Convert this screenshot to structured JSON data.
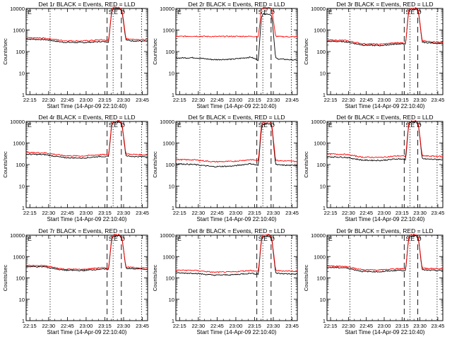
{
  "chart_data": [
    {
      "type": "line",
      "title": "Det 1r BLACK = Events, RED = LLD",
      "xlabel": "Start Time (14-Apr-09 22:10:40)",
      "ylabel": "Counts/sec",
      "ylog": true,
      "ylim": [
        1,
        10000
      ],
      "xlim": [
        22.2,
        23.82
      ],
      "x_ticks": [
        "22:15",
        "22:30",
        "22:45",
        "23:00",
        "23:15",
        "23:30",
        "23:45"
      ],
      "y_ticks": [
        "1",
        "10",
        "100",
        "1000",
        "10000"
      ],
      "x": [
        22.2,
        22.45,
        22.7,
        22.95,
        23.2,
        23.3,
        23.34,
        23.36,
        23.45,
        23.48,
        23.53,
        23.58,
        23.82
      ],
      "series": [
        {
          "name": "BLACK",
          "color": "#000000",
          "values": [
            380,
            360,
            270,
            260,
            290,
            280,
            7000,
            9500,
            9800,
            7000,
            350,
            320,
            300
          ]
        },
        {
          "name": "RED",
          "color": "#ff0000",
          "values": [
            430,
            420,
            320,
            310,
            350,
            330,
            8000,
            11000,
            11000,
            8000,
            420,
            380,
            350
          ]
        }
      ],
      "labels": [
        "E",
        "S",
        "E",
        "D"
      ]
    },
    {
      "type": "line",
      "title": "Det 2r BLACK = Events, RED = LLD",
      "xlabel": "Start Time (14-Apr-09 22:10:40)",
      "ylabel": "Counts/sec",
      "ylog": true,
      "ylim": [
        1,
        10000
      ],
      "xlim": [
        22.2,
        23.82
      ],
      "x_ticks": [
        "22:15",
        "22:30",
        "22:45",
        "23:00",
        "23:15",
        "23:30",
        "23:45"
      ],
      "y_ticks": [
        "1",
        "10",
        "100",
        "1000",
        "10000"
      ],
      "x": [
        22.2,
        22.45,
        22.7,
        22.95,
        23.2,
        23.3,
        23.34,
        23.36,
        23.45,
        23.48,
        23.53,
        23.58,
        23.82
      ],
      "series": [
        {
          "name": "BLACK",
          "color": "#000000",
          "values": [
            50,
            52,
            42,
            44,
            55,
            40,
            4000,
            5500,
            5500,
            4500,
            50,
            45,
            40
          ]
        },
        {
          "name": "RED",
          "color": "#ff0000",
          "values": [
            500,
            520,
            500,
            510,
            510,
            500,
            9000,
            11000,
            11000,
            9000,
            520,
            500,
            480
          ]
        }
      ],
      "labels": [
        "E",
        "S",
        "E",
        "D"
      ]
    },
    {
      "type": "line",
      "title": "Det 3r BLACK = Events, RED = LLD",
      "xlabel": "Start Time (14-Apr-09 22:10:40)",
      "ylabel": "Counts/sec",
      "ylog": true,
      "ylim": [
        1,
        10000
      ],
      "xlim": [
        22.2,
        23.82
      ],
      "x_ticks": [
        "22:15",
        "22:30",
        "22:45",
        "23:00",
        "23:15",
        "23:30",
        "23:45"
      ],
      "y_ticks": [
        "1",
        "10",
        "100",
        "1000",
        "10000"
      ],
      "x": [
        22.2,
        22.45,
        22.7,
        22.95,
        23.2,
        23.3,
        23.34,
        23.36,
        23.45,
        23.48,
        23.53,
        23.58,
        23.82
      ],
      "series": [
        {
          "name": "BLACK",
          "color": "#000000",
          "values": [
            300,
            290,
            200,
            190,
            230,
            220,
            6500,
            9000,
            9500,
            6500,
            280,
            260,
            240
          ]
        },
        {
          "name": "RED",
          "color": "#ff0000",
          "values": [
            340,
            330,
            230,
            220,
            260,
            250,
            7500,
            10500,
            10500,
            7500,
            320,
            300,
            270
          ]
        }
      ],
      "labels": [
        "E",
        "S",
        "E",
        "D"
      ]
    },
    {
      "type": "line",
      "title": "Det 4r BLACK = Events, RED = LLD",
      "xlabel": "Start Time (14-Apr-09 22:10:40)",
      "ylabel": "Counts/sec",
      "ylog": true,
      "ylim": [
        1,
        10000
      ],
      "xlim": [
        22.2,
        23.82
      ],
      "x_ticks": [
        "22:15",
        "22:30",
        "22:45",
        "23:00",
        "23:15",
        "23:30",
        "23:45"
      ],
      "y_ticks": [
        "1",
        "10",
        "100",
        "1000",
        "10000"
      ],
      "x": [
        22.2,
        22.45,
        22.7,
        22.95,
        23.2,
        23.3,
        23.34,
        23.36,
        23.45,
        23.48,
        23.53,
        23.58,
        23.82
      ],
      "series": [
        {
          "name": "BLACK",
          "color": "#000000",
          "values": [
            300,
            290,
            210,
            200,
            240,
            230,
            6500,
            9000,
            9500,
            6500,
            260,
            240,
            230
          ]
        },
        {
          "name": "RED",
          "color": "#ff0000",
          "values": [
            360,
            350,
            260,
            250,
            290,
            280,
            7500,
            10500,
            10500,
            7500,
            320,
            300,
            280
          ]
        }
      ],
      "labels": [
        "E",
        "S",
        "E",
        "D"
      ]
    },
    {
      "type": "line",
      "title": "Det 5r BLACK = Events, RED = LLD",
      "xlabel": "Start Time (14-Apr-09 22:10:40)",
      "ylabel": "Counts/sec",
      "ylog": true,
      "ylim": [
        1,
        10000
      ],
      "xlim": [
        22.2,
        23.82
      ],
      "x_ticks": [
        "22:15",
        "22:30",
        "22:45",
        "23:00",
        "23:15",
        "23:30",
        "23:45"
      ],
      "y_ticks": [
        "1",
        "10",
        "100",
        "1000",
        "10000"
      ],
      "x": [
        22.2,
        22.45,
        22.7,
        22.95,
        23.2,
        23.3,
        23.34,
        23.36,
        23.45,
        23.48,
        23.53,
        23.58,
        23.82
      ],
      "series": [
        {
          "name": "BLACK",
          "color": "#000000",
          "values": [
            110,
            100,
            80,
            85,
            110,
            90,
            4500,
            7500,
            8000,
            6000,
            100,
            95,
            90
          ]
        },
        {
          "name": "RED",
          "color": "#ff0000",
          "values": [
            170,
            165,
            135,
            140,
            170,
            150,
            6000,
            9500,
            10000,
            7500,
            160,
            150,
            140
          ]
        }
      ],
      "labels": [
        "E",
        "S",
        "E",
        "D"
      ]
    },
    {
      "type": "line",
      "title": "Det 6r BLACK = Events, RED = LLD",
      "xlabel": "Start Time (14-Apr-09 22:10:40)",
      "ylabel": "Counts/sec",
      "ylog": true,
      "ylim": [
        1,
        10000
      ],
      "xlim": [
        22.2,
        23.82
      ],
      "x_ticks": [
        "22:15",
        "22:30",
        "22:45",
        "23:00",
        "23:15",
        "23:30",
        "23:45"
      ],
      "y_ticks": [
        "1",
        "10",
        "100",
        "1000",
        "10000"
      ],
      "x": [
        22.2,
        22.45,
        22.7,
        22.95,
        23.2,
        23.3,
        23.34,
        23.36,
        23.45,
        23.48,
        23.53,
        23.58,
        23.82
      ],
      "series": [
        {
          "name": "BLACK",
          "color": "#000000",
          "values": [
            230,
            220,
            160,
            155,
            185,
            170,
            6000,
            9000,
            9500,
            6500,
            190,
            180,
            170
          ]
        },
        {
          "name": "RED",
          "color": "#ff0000",
          "values": [
            310,
            300,
            220,
            215,
            255,
            240,
            7000,
            10500,
            10500,
            7500,
            260,
            250,
            240
          ]
        }
      ],
      "labels": [
        "E",
        "S",
        "E",
        "D"
      ]
    },
    {
      "type": "line",
      "title": "Det 7r BLACK = Events, RED = LLD",
      "xlabel": "Start Time (14-Apr-09 22:10:40)",
      "ylabel": "Counts/sec",
      "ylog": true,
      "ylim": [
        1,
        10000
      ],
      "xlim": [
        22.2,
        23.82
      ],
      "x_ticks": [
        "22:15",
        "22:30",
        "22:45",
        "23:00",
        "23:15",
        "23:30",
        "23:45"
      ],
      "y_ticks": [
        "1",
        "10",
        "100",
        "1000",
        "10000"
      ],
      "x": [
        22.2,
        22.45,
        22.7,
        22.95,
        23.2,
        23.3,
        23.34,
        23.36,
        23.45,
        23.48,
        23.53,
        23.58,
        23.82
      ],
      "series": [
        {
          "name": "BLACK",
          "color": "#000000",
          "values": [
            340,
            330,
            230,
            220,
            260,
            250,
            6500,
            9000,
            9500,
            6500,
            290,
            270,
            260
          ]
        },
        {
          "name": "RED",
          "color": "#ff0000",
          "values": [
            380,
            370,
            260,
            250,
            300,
            280,
            7500,
            10500,
            10500,
            7500,
            330,
            310,
            290
          ]
        }
      ],
      "labels": [
        "E",
        "S",
        "E",
        "D"
      ]
    },
    {
      "type": "line",
      "title": "Det 8r BLACK = Events, RED = LLD",
      "xlabel": "Start Time (14-Apr-09 22:10:40)",
      "ylabel": "Counts/sec",
      "ylog": true,
      "ylim": [
        1,
        10000
      ],
      "xlim": [
        22.2,
        23.82
      ],
      "x_ticks": [
        "22:15",
        "22:30",
        "22:45",
        "23:00",
        "23:15",
        "23:30",
        "23:45"
      ],
      "y_ticks": [
        "1",
        "10",
        "100",
        "1000",
        "10000"
      ],
      "x": [
        22.2,
        22.45,
        22.7,
        22.95,
        23.2,
        23.3,
        23.34,
        23.36,
        23.45,
        23.48,
        23.53,
        23.58,
        23.82
      ],
      "series": [
        {
          "name": "BLACK",
          "color": "#000000",
          "values": [
            170,
            165,
            135,
            140,
            165,
            150,
            5500,
            8500,
            9000,
            6500,
            170,
            160,
            150
          ]
        },
        {
          "name": "RED",
          "color": "#ff0000",
          "values": [
            230,
            225,
            185,
            190,
            225,
            200,
            6500,
            10000,
            10500,
            7500,
            230,
            215,
            205
          ]
        }
      ],
      "labels": [
        "E",
        "S",
        "E",
        "D"
      ]
    },
    {
      "type": "line",
      "title": "Det 9r BLACK = Events, RED = LLD",
      "xlabel": "Start Time (14-Apr-09 22:10:40)",
      "ylabel": "Counts/sec",
      "ylog": true,
      "ylim": [
        1,
        10000
      ],
      "xlim": [
        22.2,
        23.82
      ],
      "x_ticks": [
        "22:15",
        "22:30",
        "22:45",
        "23:00",
        "23:15",
        "23:30",
        "23:45"
      ],
      "y_ticks": [
        "1",
        "10",
        "100",
        "1000",
        "10000"
      ],
      "x": [
        22.2,
        22.45,
        22.7,
        22.95,
        23.2,
        23.3,
        23.34,
        23.36,
        23.45,
        23.48,
        23.53,
        23.58,
        23.82
      ],
      "series": [
        {
          "name": "BLACK",
          "color": "#000000",
          "values": [
            310,
            300,
            200,
            195,
            230,
            220,
            6000,
            9000,
            9500,
            6500,
            240,
            230,
            220
          ]
        },
        {
          "name": "RED",
          "color": "#ff0000",
          "values": [
            360,
            350,
            240,
            235,
            275,
            260,
            7000,
            10500,
            10500,
            7500,
            290,
            280,
            265
          ]
        }
      ],
      "labels": [
        "E",
        "S",
        "E",
        "D"
      ]
    }
  ]
}
